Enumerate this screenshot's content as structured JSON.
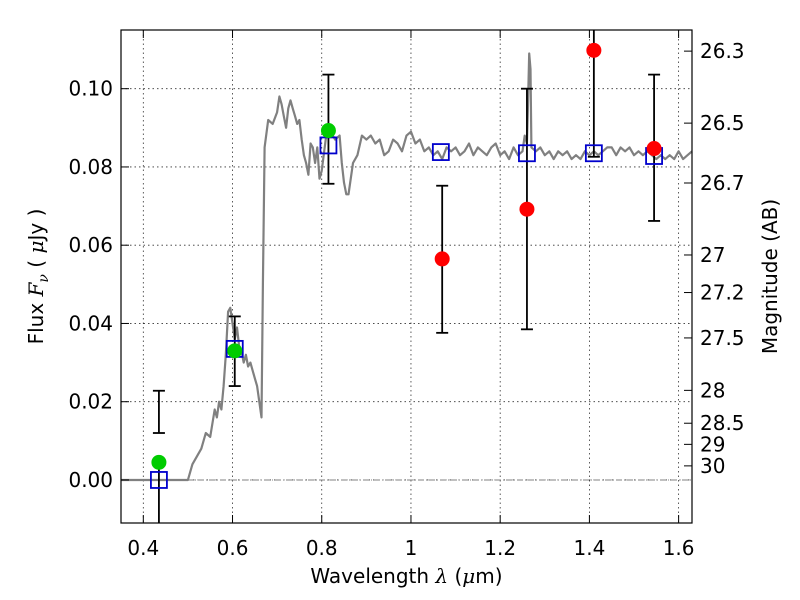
{
  "chart_data": {
    "type": "scatter",
    "xlabel": "Wavelength  λ (μm)",
    "xlabel_parts": [
      "Wavelength  ",
      "λ",
      " (",
      "μ",
      "m)"
    ],
    "ylabel": "Flux  Fν  ( μJy )",
    "ylabel_parts": [
      "Flux  ",
      "F",
      "ν",
      "  ( ",
      "μ",
      "Jy )"
    ],
    "y2label": "Magnitude (AB)",
    "xlim": [
      0.35,
      1.63
    ],
    "ylim": [
      -0.011,
      0.115
    ],
    "grid": true,
    "colors": {
      "template": "#808080",
      "obs_points": "#ff0000",
      "obs_green": "#00cc00",
      "model_boxes": "#0000cc",
      "errorbar": "#000000",
      "zero_line": "#808080"
    },
    "x_ticks": [
      {
        "value": 0.4,
        "label": "0.4"
      },
      {
        "value": 0.6,
        "label": "0.6"
      },
      {
        "value": 0.8,
        "label": "0.8"
      },
      {
        "value": 1.0,
        "label": "1"
      },
      {
        "value": 1.2,
        "label": "1.2"
      },
      {
        "value": 1.4,
        "label": "1.4"
      },
      {
        "value": 1.6,
        "label": "1.6"
      }
    ],
    "y_ticks": [
      {
        "value": 0.0,
        "label": "0.00"
      },
      {
        "value": 0.02,
        "label": "0.02"
      },
      {
        "value": 0.04,
        "label": "0.04"
      },
      {
        "value": 0.06,
        "label": "0.06"
      },
      {
        "value": 0.08,
        "label": "0.08"
      },
      {
        "value": 0.1,
        "label": "0.10"
      }
    ],
    "mag_ticks": [
      {
        "label": "26.3",
        "flux": 0.1096
      },
      {
        "label": "26.5",
        "flux": 0.0912
      },
      {
        "label": "26.7",
        "flux": 0.0759
      },
      {
        "label": "27",
        "flux": 0.0575
      },
      {
        "label": "27.2",
        "flux": 0.0479
      },
      {
        "label": "27.5",
        "flux": 0.0363
      },
      {
        "label": "28",
        "flux": 0.0229
      },
      {
        "label": "28.5",
        "flux": 0.0145
      },
      {
        "label": "29",
        "flux": 0.0091
      },
      {
        "label": "30",
        "flux": 0.0036
      }
    ],
    "template_spectrum": [
      [
        0.35,
        0.0
      ],
      [
        0.48,
        0.0
      ],
      [
        0.5,
        0.0
      ],
      [
        0.51,
        0.004
      ],
      [
        0.53,
        0.008
      ],
      [
        0.54,
        0.012
      ],
      [
        0.55,
        0.011
      ],
      [
        0.56,
        0.018
      ],
      [
        0.565,
        0.016
      ],
      [
        0.57,
        0.02
      ],
      [
        0.575,
        0.018
      ],
      [
        0.58,
        0.024
      ],
      [
        0.585,
        0.032
      ],
      [
        0.59,
        0.043
      ],
      [
        0.595,
        0.044
      ],
      [
        0.6,
        0.04
      ],
      [
        0.605,
        0.036
      ],
      [
        0.61,
        0.039
      ],
      [
        0.615,
        0.034
      ],
      [
        0.62,
        0.033
      ],
      [
        0.625,
        0.03
      ],
      [
        0.63,
        0.032
      ],
      [
        0.635,
        0.029
      ],
      [
        0.64,
        0.03
      ],
      [
        0.645,
        0.028
      ],
      [
        0.65,
        0.026
      ],
      [
        0.655,
        0.024
      ],
      [
        0.66,
        0.02
      ],
      [
        0.665,
        0.016
      ],
      [
        0.668,
        0.05
      ],
      [
        0.672,
        0.085
      ],
      [
        0.68,
        0.092
      ],
      [
        0.69,
        0.091
      ],
      [
        0.7,
        0.094
      ],
      [
        0.705,
        0.098
      ],
      [
        0.71,
        0.096
      ],
      [
        0.715,
        0.093
      ],
      [
        0.72,
        0.09
      ],
      [
        0.725,
        0.095
      ],
      [
        0.73,
        0.097
      ],
      [
        0.735,
        0.095
      ],
      [
        0.74,
        0.093
      ],
      [
        0.745,
        0.091
      ],
      [
        0.75,
        0.092
      ],
      [
        0.755,
        0.087
      ],
      [
        0.76,
        0.083
      ],
      [
        0.765,
        0.081
      ],
      [
        0.77,
        0.078
      ],
      [
        0.775,
        0.086
      ],
      [
        0.78,
        0.085
      ],
      [
        0.785,
        0.081
      ],
      [
        0.79,
        0.085
      ],
      [
        0.795,
        0.077
      ],
      [
        0.8,
        0.079
      ],
      [
        0.81,
        0.088
      ],
      [
        0.82,
        0.089
      ],
      [
        0.83,
        0.087
      ],
      [
        0.84,
        0.088
      ],
      [
        0.845,
        0.081
      ],
      [
        0.85,
        0.076
      ],
      [
        0.855,
        0.073
      ],
      [
        0.86,
        0.073
      ],
      [
        0.87,
        0.081
      ],
      [
        0.88,
        0.083
      ],
      [
        0.89,
        0.088
      ],
      [
        0.9,
        0.087
      ],
      [
        0.91,
        0.088
      ],
      [
        0.92,
        0.086
      ],
      [
        0.93,
        0.087
      ],
      [
        0.94,
        0.083
      ],
      [
        0.95,
        0.084
      ],
      [
        0.96,
        0.087
      ],
      [
        0.97,
        0.086
      ],
      [
        0.98,
        0.084
      ],
      [
        0.99,
        0.088
      ],
      [
        1.0,
        0.089
      ],
      [
        1.01,
        0.086
      ],
      [
        1.02,
        0.087
      ],
      [
        1.03,
        0.084
      ],
      [
        1.04,
        0.085
      ],
      [
        1.05,
        0.083
      ],
      [
        1.06,
        0.084
      ],
      [
        1.07,
        0.082
      ],
      [
        1.08,
        0.085
      ],
      [
        1.09,
        0.084
      ],
      [
        1.1,
        0.085
      ],
      [
        1.11,
        0.083
      ],
      [
        1.12,
        0.084
      ],
      [
        1.13,
        0.086
      ],
      [
        1.14,
        0.083
      ],
      [
        1.15,
        0.085
      ],
      [
        1.16,
        0.084
      ],
      [
        1.17,
        0.083
      ],
      [
        1.18,
        0.085
      ],
      [
        1.19,
        0.086
      ],
      [
        1.2,
        0.083
      ],
      [
        1.21,
        0.084
      ],
      [
        1.22,
        0.082
      ],
      [
        1.23,
        0.085
      ],
      [
        1.24,
        0.083
      ],
      [
        1.25,
        0.084
      ],
      [
        1.255,
        0.088
      ],
      [
        1.26,
        0.086
      ],
      [
        1.262,
        0.094
      ],
      [
        1.265,
        0.109
      ],
      [
        1.268,
        0.105
      ],
      [
        1.27,
        0.085
      ],
      [
        1.28,
        0.084
      ],
      [
        1.29,
        0.085
      ],
      [
        1.3,
        0.083
      ],
      [
        1.31,
        0.084
      ],
      [
        1.32,
        0.082
      ],
      [
        1.33,
        0.084
      ],
      [
        1.34,
        0.083
      ],
      [
        1.35,
        0.084
      ],
      [
        1.36,
        0.082
      ],
      [
        1.37,
        0.083
      ],
      [
        1.38,
        0.082
      ],
      [
        1.39,
        0.084
      ],
      [
        1.4,
        0.083
      ],
      [
        1.41,
        0.084
      ],
      [
        1.42,
        0.083
      ],
      [
        1.43,
        0.084
      ],
      [
        1.44,
        0.085
      ],
      [
        1.45,
        0.085
      ],
      [
        1.46,
        0.083
      ],
      [
        1.47,
        0.085
      ],
      [
        1.48,
        0.084
      ],
      [
        1.49,
        0.085
      ],
      [
        1.5,
        0.083
      ],
      [
        1.51,
        0.084
      ],
      [
        1.52,
        0.083
      ],
      [
        1.53,
        0.084
      ],
      [
        1.54,
        0.083
      ],
      [
        1.55,
        0.082
      ],
      [
        1.56,
        0.083
      ],
      [
        1.57,
        0.082
      ],
      [
        1.58,
        0.083
      ],
      [
        1.59,
        0.082
      ],
      [
        1.6,
        0.084
      ],
      [
        1.61,
        0.082
      ],
      [
        1.62,
        0.083
      ],
      [
        1.63,
        0.084
      ]
    ],
    "model_boxes": [
      {
        "x": 0.435,
        "y": 0.0
      },
      {
        "x": 0.605,
        "y": 0.0335
      },
      {
        "x": 0.815,
        "y": 0.0855
      },
      {
        "x": 1.067,
        "y": 0.0838
      },
      {
        "x": 1.26,
        "y": 0.0835
      },
      {
        "x": 1.41,
        "y": 0.0835
      },
      {
        "x": 1.545,
        "y": 0.0828
      }
    ],
    "observations": [
      {
        "x": 0.435,
        "y": 0.0045,
        "err_lo": 0.012,
        "err_hi": 0.0228,
        "color": "green"
      },
      {
        "x": 0.605,
        "y": 0.033,
        "err_lo": 0.024,
        "err_hi": 0.0418,
        "color": "green"
      },
      {
        "x": 0.815,
        "y": 0.0893,
        "err_lo": 0.0757,
        "err_hi": 0.1036,
        "color": "green"
      },
      {
        "x": 1.07,
        "y": 0.0565,
        "err_lo": 0.0376,
        "err_hi": 0.0752,
        "color": "red"
      },
      {
        "x": 1.26,
        "y": 0.0692,
        "err_lo": 0.0385,
        "err_hi": 0.1,
        "color": "red"
      },
      {
        "x": 1.41,
        "y": 0.1098,
        "err_lo": 0.0826,
        "err_hi": 0.115,
        "color": "red"
      },
      {
        "x": 1.545,
        "y": 0.0847,
        "err_lo": 0.0662,
        "err_hi": 0.1036,
        "color": "red"
      }
    ]
  }
}
